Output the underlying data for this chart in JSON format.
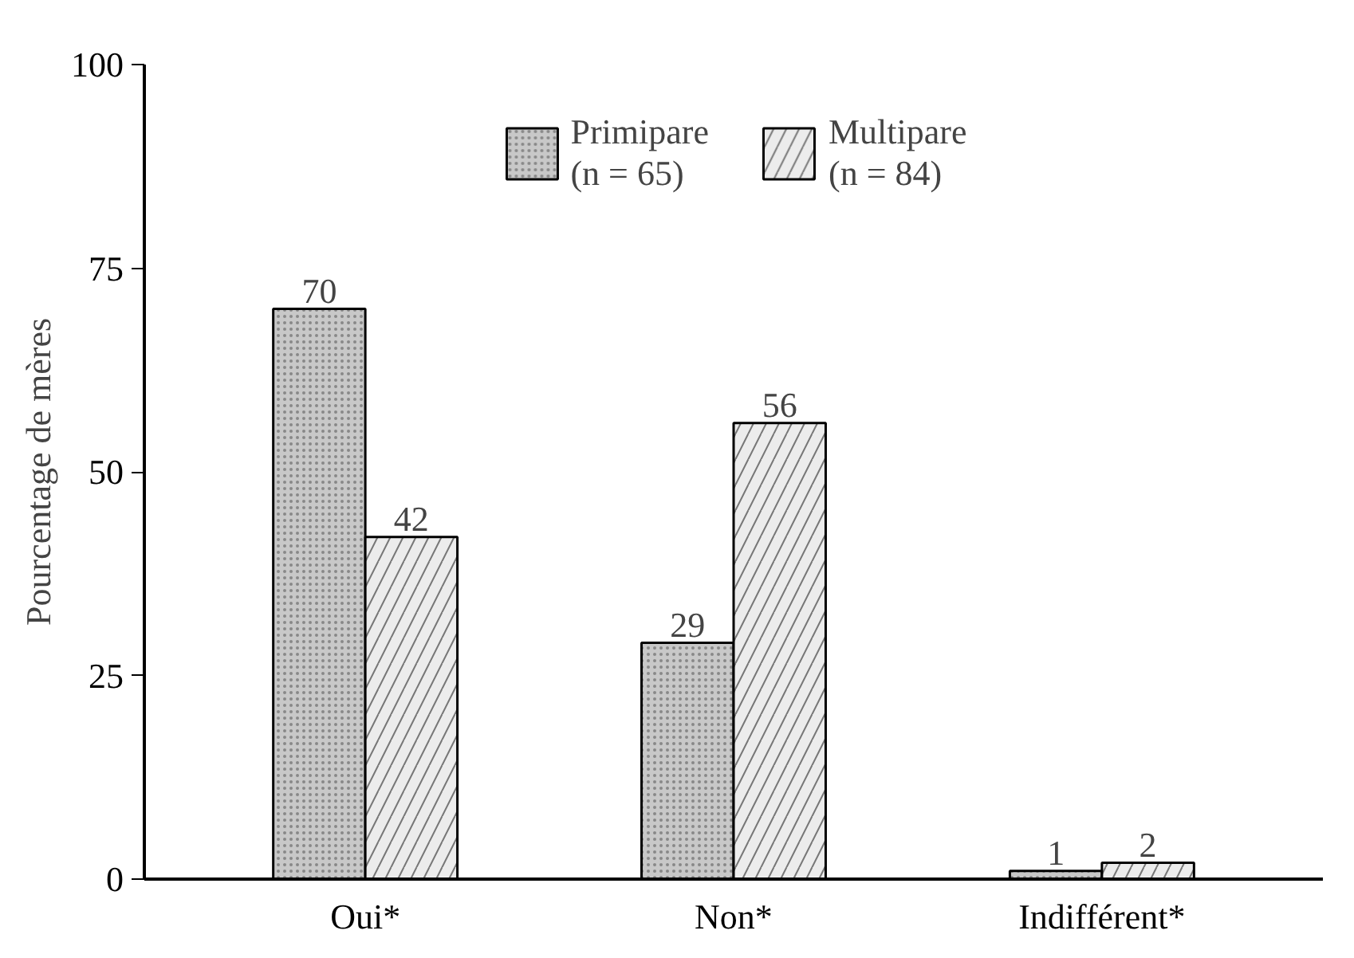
{
  "chart_data": {
    "type": "bar",
    "ylabel": "Pourcentage de mères",
    "categories": [
      "Oui*",
      "Non*",
      "Indifférent*"
    ],
    "series": [
      {
        "name": "Primipare\n(n = 65)",
        "color": "#c8c8c8",
        "values": [
          70,
          29,
          1
        ]
      },
      {
        "name": "Multipare\n(n = 84)",
        "color": "#ececec",
        "values": [
          42,
          56,
          2
        ]
      }
    ],
    "ylim": [
      0,
      100
    ],
    "yticks": [
      0,
      25,
      50,
      75,
      100
    ],
    "grid": false,
    "legend": "top",
    "data_labels": true
  }
}
